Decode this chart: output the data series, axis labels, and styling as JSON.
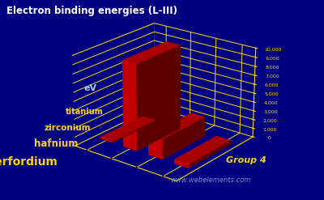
{
  "title": "Electron binding energies (L-III)",
  "ylabel": "eV",
  "group_label": "Group 4",
  "watermark": "www.webelements.com",
  "elements": [
    "titanium",
    "zirconium",
    "hafnium",
    "rutherfordium"
  ],
  "values": [
    454,
    2223,
    9561,
    115
  ],
  "ylim": [
    0,
    10000
  ],
  "yticks": [
    0,
    1000,
    2000,
    3000,
    4000,
    5000,
    6000,
    7000,
    8000,
    9000,
    10000
  ],
  "ytick_labels": [
    "0",
    "1,000",
    "2,000",
    "3,000",
    "4,000",
    "5,000",
    "6,000",
    "7,000",
    "8,000",
    "9,000",
    "10,000"
  ],
  "bar_color": "#dd0000",
  "bar_color_dark": "#990000",
  "background_color": "#000080",
  "grid_color": "#FFD700",
  "title_color": "#ffffff",
  "label_color": "#FFD700",
  "ev_label_color": "#aaccff",
  "figsize": [
    4.0,
    2.47
  ],
  "dpi": 100,
  "elev": 22,
  "azim": -52
}
